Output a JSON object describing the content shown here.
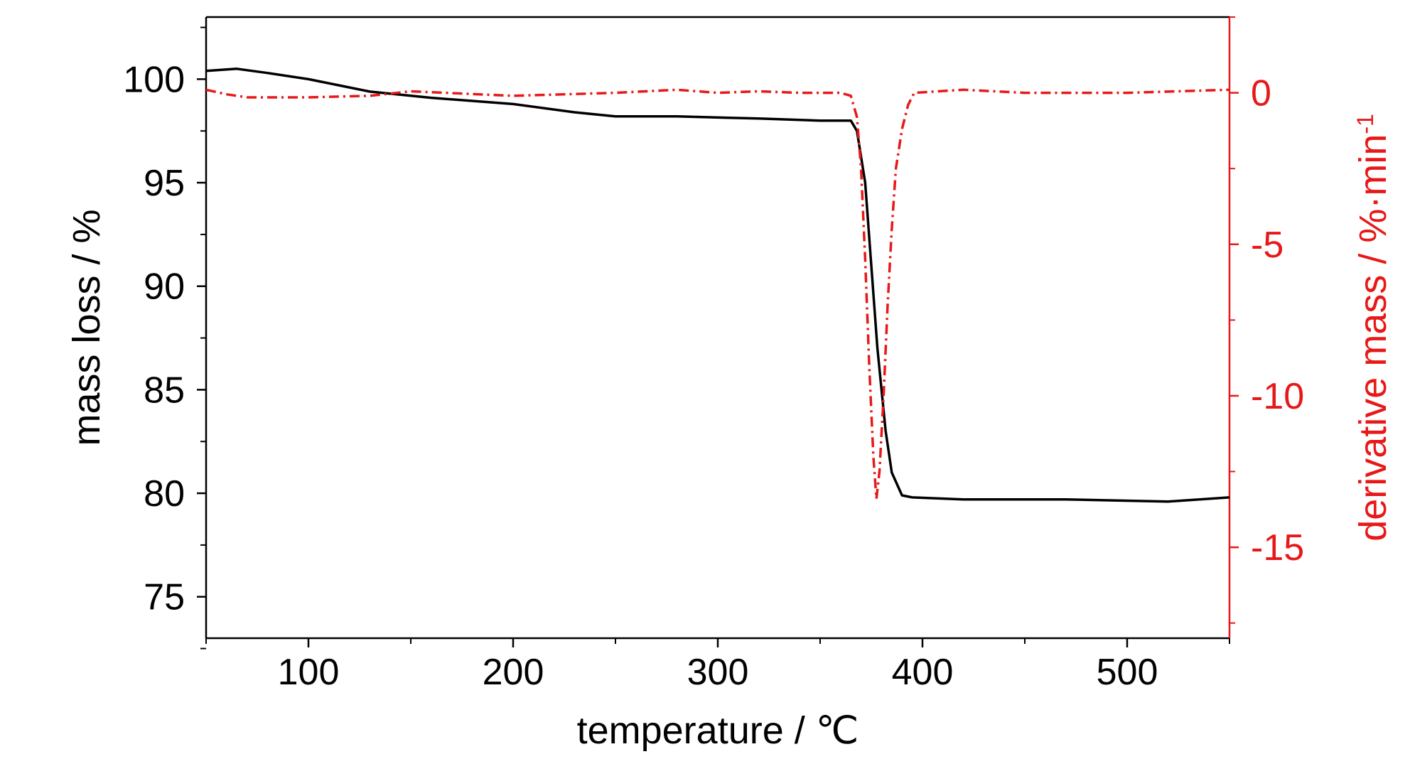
{
  "chart_data": {
    "type": "line",
    "title": "",
    "xlabel": "temperature / ℃",
    "ylabel_left": "mass loss / %",
    "ylabel_right_base": "derivative mass / %·min",
    "ylabel_right_sup": "-1",
    "xlim": [
      50,
      550
    ],
    "ylim_left": [
      73,
      103
    ],
    "ylim_right": [
      -18,
      2.5
    ],
    "x_ticks": [
      100,
      200,
      300,
      400,
      500
    ],
    "y_left_ticks": [
      75,
      80,
      85,
      90,
      95,
      100
    ],
    "y_right_ticks": [
      -15,
      -10,
      -5,
      0
    ],
    "grid": false,
    "legend": "none",
    "colors": {
      "mass": "#000000",
      "derivative": "#e81818",
      "axis_right": "#e81818",
      "axis": "#000000"
    },
    "series": [
      {
        "axis": "left",
        "style": "solid",
        "color": "#000000",
        "x": [
          50,
          65,
          80,
          100,
          130,
          160,
          200,
          230,
          250,
          280,
          320,
          350,
          365,
          368,
          372,
          375,
          378,
          380,
          382,
          385,
          390,
          395,
          420,
          470,
          520,
          550
        ],
        "values": [
          100.4,
          100.5,
          100.3,
          100.0,
          99.4,
          99.1,
          98.8,
          98.4,
          98.2,
          98.2,
          98.1,
          98.0,
          98.0,
          97.5,
          95.0,
          91.0,
          87.0,
          85.0,
          83.0,
          81.0,
          79.9,
          79.8,
          79.7,
          79.7,
          79.6,
          79.8
        ]
      },
      {
        "axis": "right",
        "style": "dash-dot",
        "color": "#e81818",
        "x": [
          50,
          60,
          70,
          100,
          130,
          150,
          200,
          250,
          280,
          300,
          320,
          340,
          360,
          365,
          368,
          370,
          372,
          374,
          376,
          377.5,
          379,
          381,
          383,
          385,
          387,
          390,
          393,
          396,
          420,
          450,
          500,
          550
        ],
        "values": [
          0.1,
          -0.05,
          -0.15,
          -0.15,
          -0.1,
          0.05,
          -0.1,
          0.0,
          0.1,
          0.0,
          0.05,
          0.0,
          0.0,
          -0.1,
          -0.8,
          -2.5,
          -5.5,
          -9.0,
          -12.0,
          -13.4,
          -12.5,
          -10.0,
          -7.0,
          -4.5,
          -2.5,
          -1.2,
          -0.4,
          0.0,
          0.1,
          0.0,
          0.0,
          0.1
        ]
      }
    ]
  }
}
